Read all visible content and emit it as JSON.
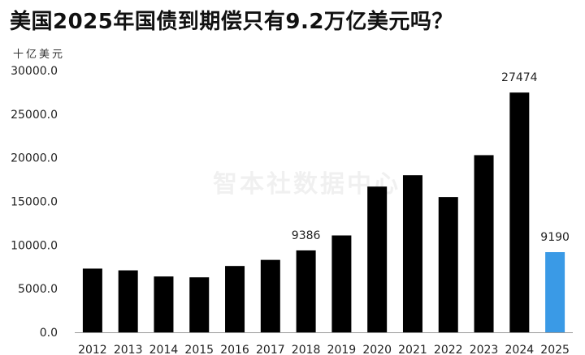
{
  "title": "美国2025年国债到期偿只有9.2万亿美元吗？",
  "unit_label": "十亿美元",
  "watermark": "智本社数据中心",
  "colors": {
    "bar": "#000000",
    "highlight": "#3a9ae6",
    "text": "#222222",
    "axis": "#999999"
  },
  "chart_data": {
    "type": "bar",
    "title": "美国2025年国债到期偿只有9.2万亿美元吗？",
    "ylabel": "十亿美元",
    "xlabel": "",
    "ylim": [
      0,
      30000
    ],
    "yticks": [
      "0.0",
      "5000.0",
      "10000.0",
      "15000.0",
      "20000.0",
      "25000.0",
      "30000.0"
    ],
    "categories": [
      "2012",
      "2013",
      "2014",
      "2015",
      "2016",
      "2017",
      "2018",
      "2019",
      "2020",
      "2021",
      "2022",
      "2023",
      "2024",
      "2025"
    ],
    "values": [
      7300,
      7100,
      6400,
      6300,
      7600,
      8300,
      9386,
      11100,
      16700,
      18000,
      15500,
      20300,
      27474,
      9190
    ],
    "data_labels": {
      "2018": "9386",
      "2024": "27474",
      "2025": "9190"
    },
    "highlight_category": "2025",
    "grid": false
  }
}
